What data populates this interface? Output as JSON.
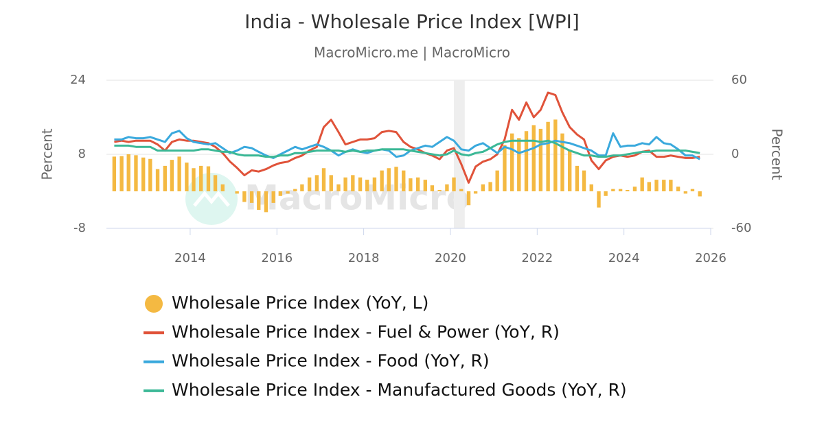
{
  "chart_data": {
    "type": "combo",
    "title": "India - Wholesale Price Index [WPI]",
    "subtitle": "MacroMicro.me | MacroMicro",
    "watermark": "MacroMicro",
    "y_label": "Percent",
    "y2_label": "Percent",
    "xlim": [
      2012.07,
      2026
    ],
    "xticks": [
      2014,
      2016,
      2018,
      2020,
      2022,
      2024,
      2026
    ],
    "ylim": [
      -8,
      24
    ],
    "yticks": [
      -8,
      8,
      24
    ],
    "y2lim": [
      -60,
      60
    ],
    "y2ticks": [
      -60,
      0,
      60
    ],
    "grid": true,
    "legend": "bottom",
    "shaded": [
      2020.08,
      2020.33
    ],
    "x": [
      2012.25,
      2012.42,
      2012.58,
      2012.75,
      2012.92,
      2013.08,
      2013.25,
      2013.42,
      2013.58,
      2013.75,
      2013.92,
      2014.08,
      2014.25,
      2014.42,
      2014.58,
      2014.75,
      2014.92,
      2015.08,
      2015.25,
      2015.42,
      2015.58,
      2015.75,
      2015.92,
      2016.08,
      2016.25,
      2016.42,
      2016.58,
      2016.75,
      2016.92,
      2017.08,
      2017.25,
      2017.42,
      2017.58,
      2017.75,
      2017.92,
      2018.08,
      2018.25,
      2018.42,
      2018.58,
      2018.75,
      2018.92,
      2019.08,
      2019.25,
      2019.42,
      2019.58,
      2019.75,
      2019.92,
      2020.08,
      2020.25,
      2020.42,
      2020.58,
      2020.75,
      2020.92,
      2021.08,
      2021.25,
      2021.42,
      2021.58,
      2021.75,
      2021.92,
      2022.08,
      2022.25,
      2022.42,
      2022.58,
      2022.75,
      2022.92,
      2023.08,
      2023.25,
      2023.42,
      2023.58,
      2023.75,
      2023.92,
      2024.08,
      2024.25,
      2024.42,
      2024.58,
      2024.75,
      2024.92,
      2025.08,
      2025.25,
      2025.42,
      2025.58,
      2025.75
    ],
    "series": [
      {
        "name": "Wholesale Price Index (YoY, L)",
        "type": "bar",
        "color": "#f4b942",
        "values": [
          7.5,
          7.6,
          8.0,
          7.8,
          7.3,
          7.0,
          4.8,
          5.5,
          6.8,
          7.5,
          6.2,
          5.0,
          5.5,
          5.4,
          3.5,
          1.5,
          0.0,
          -0.5,
          -2.3,
          -2.5,
          -4.0,
          -4.5,
          -2.5,
          -1.0,
          -0.5,
          0.5,
          1.5,
          3.0,
          3.5,
          5.0,
          3.5,
          1.5,
          3.0,
          3.5,
          3.0,
          2.5,
          3.0,
          4.5,
          5.0,
          5.3,
          4.5,
          2.8,
          3.0,
          2.5,
          1.3,
          0.3,
          1.5,
          3.0,
          0.5,
          -3.0,
          -0.5,
          1.5,
          2.0,
          4.5,
          10.0,
          12.5,
          11.5,
          13.0,
          14.3,
          13.5,
          15.0,
          15.5,
          12.5,
          9.0,
          5.5,
          4.5,
          1.5,
          -3.5,
          -1.0,
          0.5,
          0.5,
          0.3,
          1.0,
          3.0,
          2.0,
          2.5,
          2.5,
          2.5,
          1.0,
          -0.5,
          0.5,
          -1.1
        ]
      },
      {
        "name": "Wholesale Price Index - Fuel & Power (YoY, R)",
        "type": "line",
        "axis": "y2",
        "color": "#e0533a",
        "values": [
          10,
          11,
          10,
          11,
          11,
          11,
          8,
          3,
          10,
          12,
          11,
          11,
          10,
          9,
          6,
          1,
          -6,
          -11,
          -17,
          -13,
          -14,
          -12,
          -9,
          -7,
          -6,
          -3,
          -1,
          3,
          6,
          22,
          28,
          18,
          8,
          10,
          12,
          12,
          13,
          18,
          19,
          18,
          10,
          6,
          4,
          1,
          -1,
          -4,
          3,
          5,
          -8,
          -23,
          -10,
          -6,
          -4,
          0,
          12,
          36,
          28,
          42,
          30,
          36,
          50,
          48,
          34,
          22,
          16,
          12,
          -5,
          -12,
          -5,
          -2,
          -1,
          -2,
          -1,
          2,
          3,
          -2,
          -2,
          -1,
          -2,
          -3,
          -3,
          -2
        ]
      },
      {
        "name": "Wholesale Price Index - Food (YoY, R)",
        "type": "line",
        "axis": "y2",
        "color": "#3aa9dd",
        "values": [
          12,
          12,
          14,
          13,
          13,
          14,
          12,
          10,
          17,
          19,
          13,
          10,
          9,
          8,
          9,
          5,
          1,
          3,
          6,
          5,
          2,
          -1,
          -3,
          0,
          3,
          6,
          4,
          6,
          8,
          6,
          3,
          -1,
          2,
          4,
          2,
          1,
          3,
          4,
          3,
          -2,
          -1,
          3,
          5,
          7,
          6,
          10,
          14,
          11,
          4,
          3,
          7,
          9,
          5,
          1,
          6,
          4,
          1,
          3,
          5,
          8,
          9,
          11,
          10,
          9,
          7,
          5,
          3,
          -1,
          -1,
          17,
          6,
          7,
          7,
          9,
          8,
          14,
          9,
          8,
          4,
          -1,
          -1,
          -4
        ]
      },
      {
        "name": "Wholesale Price Index - Manufactured Goods (YoY, R)",
        "type": "line",
        "axis": "y2",
        "color": "#3bb896",
        "values": [
          7,
          7,
          7,
          6,
          6,
          6,
          3,
          3,
          3,
          3,
          3,
          3,
          4,
          4,
          3,
          2,
          2,
          0,
          -1,
          -1,
          -1,
          -2,
          -2,
          -1,
          -1,
          1,
          1,
          2,
          3,
          3,
          3,
          3,
          2,
          3,
          2,
          3,
          3,
          4,
          4,
          4,
          4,
          3,
          2,
          1,
          0,
          -1,
          0,
          3,
          0,
          -1,
          1,
          2,
          5,
          8,
          10,
          11,
          11,
          11,
          11,
          10,
          11,
          9,
          6,
          3,
          1,
          -1,
          -1,
          -2,
          -2,
          -1,
          -1,
          0,
          1,
          2,
          2,
          3,
          3,
          3,
          3,
          3,
          2,
          1
        ]
      }
    ]
  }
}
